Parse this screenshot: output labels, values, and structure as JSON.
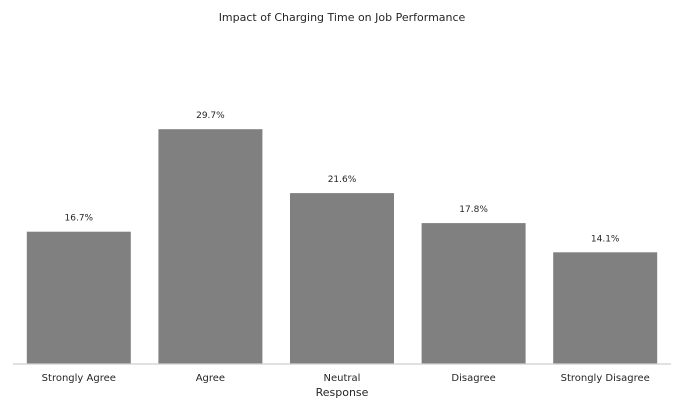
{
  "colors": {
    "bar": "#808080",
    "axis": "#cfcfcf",
    "text": "#262626"
  },
  "chart_data": {
    "type": "bar",
    "title": "Impact of Charging Time on Job Performance",
    "xlabel": "Response",
    "ylabel": "",
    "categories": [
      "Strongly Agree",
      "Agree",
      "Neutral",
      "Disagree",
      "Strongly Disagree"
    ],
    "values": [
      16.7,
      29.7,
      21.6,
      17.8,
      14.1
    ],
    "value_labels": [
      "16.7%",
      "29.7%",
      "21.6%",
      "17.8%",
      "14.1%"
    ],
    "ylim": [
      0,
      35.6
    ],
    "grid": false,
    "legend": "none"
  }
}
